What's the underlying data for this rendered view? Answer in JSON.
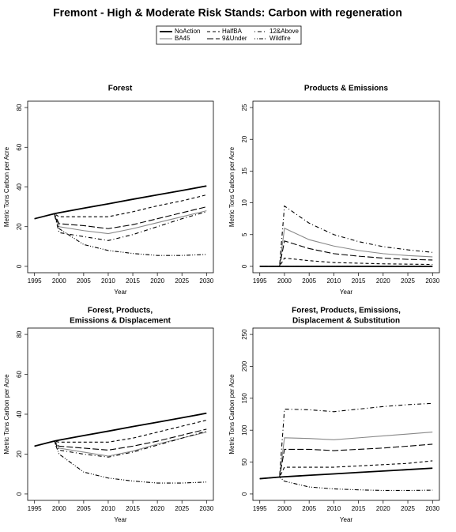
{
  "title": "Fremont  - High & Moderate Risk Stands: Carbon with regeneration",
  "legend": [
    {
      "name": "NoAction",
      "color": "#000000",
      "linestyle": "solid"
    },
    {
      "name": "BA45",
      "color": "#888888",
      "linestyle": "solid"
    },
    {
      "name": "HalfBA",
      "color": "#000000",
      "linestyle": "dashed"
    },
    {
      "name": "9&Under",
      "color": "#000000",
      "linestyle": "longdash"
    },
    {
      "name": "12&Above",
      "color": "#000000",
      "linestyle": "dotdash"
    },
    {
      "name": "Wildfire",
      "color": "#000000",
      "linestyle": "twodash"
    }
  ],
  "chart_data": [
    {
      "type": "line",
      "title": [
        "Forest"
      ],
      "xlabel": "Year",
      "ylabel": "Metric Tons Carbon per Acre",
      "x": [
        1995,
        1999,
        2000,
        2005,
        2010,
        2015,
        2020,
        2025,
        2030
      ],
      "xlim": [
        1993.6,
        2031.4
      ],
      "xticks": [
        1995,
        2000,
        2005,
        2010,
        2015,
        2020,
        2025,
        2030
      ],
      "ylim": [
        -3.2,
        83.2
      ],
      "yticks": [
        0,
        20,
        40,
        60,
        80
      ],
      "series": [
        {
          "values": [
            24,
            26.5,
            27,
            29.3,
            31.5,
            33.8,
            36,
            38.2,
            40.5
          ]
        },
        {
          "values": [
            24,
            26.5,
            20,
            18,
            16.5,
            19,
            22,
            25,
            28
          ]
        },
        {
          "values": [
            24,
            26.5,
            25,
            25,
            25,
            27.5,
            30.5,
            33,
            36
          ]
        },
        {
          "values": [
            24,
            26.5,
            21.5,
            20.5,
            19,
            21,
            24,
            27,
            30
          ]
        },
        {
          "values": [
            24,
            26.5,
            17,
            15,
            13,
            16,
            20,
            24,
            27.5
          ]
        },
        {
          "values": [
            24,
            26.5,
            19,
            11,
            8,
            6.5,
            5.5,
            5.5,
            6
          ]
        }
      ]
    },
    {
      "type": "line",
      "title": [
        "Products & Emissions"
      ],
      "xlabel": "Year",
      "ylabel": "Metric Tons Carbon per Acre",
      "x": [
        1995,
        1999,
        2000,
        2005,
        2010,
        2015,
        2020,
        2025,
        2030
      ],
      "xlim": [
        1993.6,
        2031.4
      ],
      "xticks": [
        1995,
        2000,
        2005,
        2010,
        2015,
        2020,
        2025,
        2030
      ],
      "ylim": [
        -1,
        26
      ],
      "yticks": [
        0,
        5,
        10,
        15,
        20,
        25
      ],
      "series": [
        {
          "values": [
            0,
            0,
            0,
            0,
            0,
            0,
            0,
            0,
            0
          ]
        },
        {
          "values": [
            0,
            0,
            6,
            4.2,
            3.2,
            2.5,
            2,
            1.7,
            1.5
          ]
        },
        {
          "values": [
            0,
            0,
            1.3,
            0.9,
            0.6,
            0.5,
            0.4,
            0.35,
            0.3
          ]
        },
        {
          "values": [
            0,
            0,
            4,
            2.8,
            2,
            1.6,
            1.3,
            1.1,
            1
          ]
        },
        {
          "values": [
            0,
            0,
            9.5,
            6.8,
            5,
            3.9,
            3.1,
            2.6,
            2.2
          ]
        },
        {
          "values": [
            0,
            0,
            0,
            0,
            0,
            0,
            0,
            0,
            0
          ]
        }
      ]
    },
    {
      "type": "line",
      "title": [
        "Forest, Products,",
        "Emissions & Displacement"
      ],
      "xlabel": "Year",
      "ylabel": "Metric Tons Carbon per Acre",
      "x": [
        1995,
        1999,
        2000,
        2005,
        2010,
        2015,
        2020,
        2025,
        2030
      ],
      "xlim": [
        1993.6,
        2031.4
      ],
      "xticks": [
        1995,
        2000,
        2005,
        2010,
        2015,
        2020,
        2025,
        2030
      ],
      "ylim": [
        -3.2,
        83.2
      ],
      "yticks": [
        0,
        20,
        40,
        60,
        80
      ],
      "series": [
        {
          "values": [
            24,
            26.5,
            27,
            29.3,
            31.5,
            33.8,
            36,
            38.2,
            40.5
          ]
        },
        {
          "values": [
            24,
            26.5,
            23,
            21,
            19,
            21.5,
            25,
            28,
            31
          ]
        },
        {
          "values": [
            24,
            26.5,
            26,
            26,
            26,
            28,
            31,
            34,
            37
          ]
        },
        {
          "values": [
            24,
            26.5,
            24,
            23,
            22,
            24,
            26.5,
            29.5,
            32.5
          ]
        },
        {
          "values": [
            24,
            26.5,
            22,
            20,
            18.5,
            21,
            24.5,
            28,
            31.5
          ]
        },
        {
          "values": [
            24,
            26.5,
            20,
            11,
            8,
            6.5,
            5.5,
            5.5,
            6
          ]
        }
      ]
    },
    {
      "type": "line",
      "title": [
        "Forest, Products, Emissions,",
        "Displacement & Substitution"
      ],
      "xlabel": "Year",
      "ylabel": "Metric Tons Carbon per Acre",
      "x": [
        1995,
        1999,
        2000,
        2005,
        2010,
        2015,
        2020,
        2025,
        2030
      ],
      "xlim": [
        1993.6,
        2031.4
      ],
      "xticks": [
        1995,
        2000,
        2005,
        2010,
        2015,
        2020,
        2025,
        2030
      ],
      "ylim": [
        -10,
        260
      ],
      "yticks": [
        0,
        50,
        100,
        150,
        200,
        250
      ],
      "series": [
        {
          "values": [
            24,
            26.5,
            27,
            29.3,
            31.5,
            33.8,
            36,
            38.2,
            40.5
          ]
        },
        {
          "values": [
            24,
            26.5,
            88,
            87,
            85,
            88,
            91,
            94,
            97
          ]
        },
        {
          "values": [
            24,
            26.5,
            42,
            42,
            42,
            44,
            46,
            48,
            52
          ]
        },
        {
          "values": [
            24,
            26.5,
            70,
            70,
            68,
            70,
            72,
            75,
            78
          ]
        },
        {
          "values": [
            24,
            26.5,
            133,
            132,
            129,
            133,
            137,
            140,
            142
          ]
        },
        {
          "values": [
            24,
            26.5,
            20,
            11,
            8,
            6.5,
            5.5,
            5.5,
            6
          ]
        }
      ]
    }
  ]
}
